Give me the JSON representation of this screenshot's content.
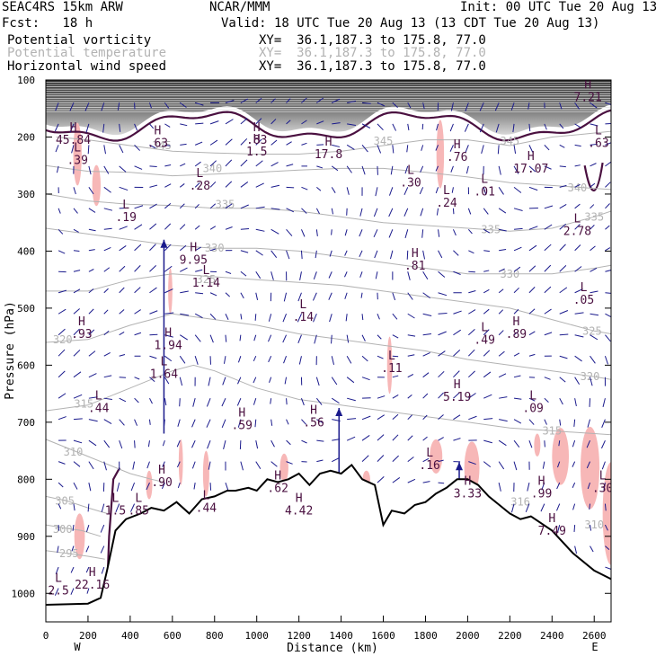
{
  "header": {
    "model": "SEAC4RS 15km ARW",
    "center": "NCAR/MMM",
    "init": "Init: 00 UTC Tue 20 Aug 13",
    "fcst_label": "Fcst:",
    "fcst_value": "18 h",
    "valid": "Valid: 18 UTC Tue 20 Aug 13 (13 CDT Tue 20 Aug 13)",
    "fields": [
      {
        "name": "Potential vorticity",
        "xy": "XY=  36.1,187.3 to 175.8, 77.0"
      },
      {
        "name": "Potential temperature",
        "xy": "XY=  36.1,187.3 to 175.8, 77.0"
      },
      {
        "name": "Horizontal wind speed",
        "xy": "XY=  36.1,187.3 to 175.8, 77.0"
      }
    ]
  },
  "colors": {
    "pv_contour": "#4a1040",
    "theta_contour": "#b3b3b3",
    "wind_text": "#1a1a8c",
    "pv_fill": "#f7b7b7",
    "terrain": "#000000"
  },
  "chart_data": {
    "type": "heatmap",
    "xlabel": "Distance (km)",
    "ylabel": "Pressure (hPa)",
    "xlim": [
      0,
      2680
    ],
    "ylim": [
      1050,
      100
    ],
    "x_ticks": [
      "0",
      "200",
      "400",
      "600",
      "800",
      "1000",
      "1200",
      "1400",
      "1600",
      "1800",
      "2000",
      "2200",
      "2400",
      "2600"
    ],
    "y_ticks": [
      "100",
      "200",
      "300",
      "400",
      "500",
      "600",
      "700",
      "800",
      "900",
      "1000"
    ],
    "end_labels": {
      "left": "W",
      "right": "E"
    },
    "terrain": [
      [
        0,
        1020
      ],
      [
        200,
        1018
      ],
      [
        260,
        1008
      ],
      [
        290,
        960
      ],
      [
        330,
        890
      ],
      [
        380,
        870
      ],
      [
        450,
        860
      ],
      [
        500,
        850
      ],
      [
        560,
        855
      ],
      [
        620,
        840
      ],
      [
        680,
        860
      ],
      [
        740,
        835
      ],
      [
        800,
        830
      ],
      [
        860,
        820
      ],
      [
        900,
        820
      ],
      [
        960,
        815
      ],
      [
        1000,
        820
      ],
      [
        1050,
        800
      ],
      [
        1100,
        805
      ],
      [
        1150,
        800
      ],
      [
        1200,
        790
      ],
      [
        1250,
        810
      ],
      [
        1300,
        790
      ],
      [
        1350,
        785
      ],
      [
        1400,
        790
      ],
      [
        1450,
        775
      ],
      [
        1500,
        800
      ],
      [
        1560,
        810
      ],
      [
        1600,
        880
      ],
      [
        1640,
        855
      ],
      [
        1700,
        860
      ],
      [
        1750,
        845
      ],
      [
        1800,
        840
      ],
      [
        1850,
        825
      ],
      [
        1900,
        815
      ],
      [
        1950,
        800
      ],
      [
        2000,
        800
      ],
      [
        2050,
        810
      ],
      [
        2100,
        830
      ],
      [
        2150,
        845
      ],
      [
        2200,
        860
      ],
      [
        2250,
        870
      ],
      [
        2300,
        865
      ],
      [
        2400,
        890
      ],
      [
        2500,
        930
      ],
      [
        2600,
        960
      ],
      [
        2680,
        975
      ]
    ],
    "theta_contours": [
      {
        "label": "345",
        "points": [
          [
            50,
            200
          ],
          [
            200,
            205
          ],
          [
            400,
            215
          ],
          [
            600,
            225
          ],
          [
            800,
            228
          ],
          [
            1000,
            230
          ],
          [
            1200,
            230
          ],
          [
            1400,
            225
          ],
          [
            1600,
            215
          ],
          [
            1800,
            205
          ],
          [
            2000,
            205
          ],
          [
            2200,
            215
          ],
          [
            2400,
            200
          ],
          [
            2550,
            195
          ],
          [
            2680,
            190
          ]
        ],
        "labels": [
          [
            550,
            215
          ],
          [
            1600,
            207
          ],
          [
            2200,
            207
          ]
        ]
      },
      {
        "label": "340",
        "points": [
          [
            0,
            250
          ],
          [
            200,
            260
          ],
          [
            400,
            262
          ],
          [
            600,
            268
          ],
          [
            800,
            265
          ],
          [
            1000,
            262
          ],
          [
            1200,
            258
          ],
          [
            1400,
            255
          ],
          [
            1600,
            255
          ],
          [
            1800,
            262
          ],
          [
            2000,
            270
          ],
          [
            2200,
            280
          ],
          [
            2400,
            285
          ],
          [
            2600,
            290
          ],
          [
            2680,
            292
          ]
        ],
        "labels": [
          [
            790,
            255
          ],
          [
            2520,
            289
          ]
        ]
      },
      {
        "label": "335",
        "points": [
          [
            0,
            300
          ],
          [
            200,
            312
          ],
          [
            400,
            318
          ],
          [
            600,
            320
          ],
          [
            800,
            325
          ],
          [
            1000,
            325
          ],
          [
            1200,
            330
          ],
          [
            1400,
            340
          ],
          [
            1600,
            350
          ],
          [
            1800,
            355
          ],
          [
            2000,
            360
          ],
          [
            2200,
            365
          ],
          [
            2400,
            360
          ],
          [
            2600,
            340
          ],
          [
            2680,
            330
          ]
        ],
        "labels": [
          [
            850,
            318
          ],
          [
            2110,
            362
          ],
          [
            2600,
            340
          ]
        ]
      },
      {
        "label": "330",
        "points": [
          [
            0,
            360
          ],
          [
            200,
            370
          ],
          [
            400,
            380
          ],
          [
            600,
            390
          ],
          [
            800,
            395
          ],
          [
            1000,
            395
          ],
          [
            1200,
            400
          ],
          [
            1400,
            410
          ],
          [
            1600,
            420
          ],
          [
            1800,
            430
          ],
          [
            2000,
            440
          ],
          [
            2200,
            440
          ],
          [
            2400,
            440
          ],
          [
            2600,
            430
          ],
          [
            2680,
            425
          ]
        ],
        "labels": [
          [
            800,
            395
          ],
          [
            2200,
            440
          ]
        ]
      },
      {
        "label": "325",
        "points": [
          [
            0,
            470
          ],
          [
            200,
            470
          ],
          [
            400,
            450
          ],
          [
            600,
            440
          ],
          [
            800,
            445
          ],
          [
            1000,
            450
          ],
          [
            1200,
            455
          ],
          [
            1400,
            460
          ],
          [
            1600,
            470
          ],
          [
            1800,
            480
          ],
          [
            2000,
            490
          ],
          [
            2200,
            500
          ],
          [
            2400,
            520
          ],
          [
            2600,
            540
          ],
          [
            2680,
            545
          ]
        ],
        "labels": [
          [
            760,
            450
          ],
          [
            2590,
            540
          ]
        ]
      },
      {
        "label": "320",
        "points": [
          [
            0,
            560
          ],
          [
            200,
            555
          ],
          [
            400,
            530
          ],
          [
            500,
            520
          ],
          [
            600,
            510
          ],
          [
            800,
            520
          ],
          [
            1000,
            530
          ],
          [
            1200,
            545
          ],
          [
            1400,
            555
          ],
          [
            1600,
            565
          ],
          [
            1800,
            575
          ],
          [
            2000,
            590
          ],
          [
            2200,
            600
          ],
          [
            2400,
            610
          ],
          [
            2600,
            620
          ],
          [
            2680,
            625
          ]
        ],
        "labels": [
          [
            80,
            555
          ],
          [
            2580,
            620
          ]
        ]
      },
      {
        "label": "315",
        "points": [
          [
            0,
            680
          ],
          [
            200,
            670
          ],
          [
            400,
            640
          ],
          [
            600,
            610
          ],
          [
            700,
            600
          ],
          [
            800,
            610
          ],
          [
            1000,
            640
          ],
          [
            1200,
            660
          ],
          [
            1400,
            670
          ],
          [
            1600,
            680
          ],
          [
            1800,
            690
          ],
          [
            2000,
            700
          ],
          [
            2200,
            710
          ],
          [
            2400,
            715
          ],
          [
            2600,
            720
          ],
          [
            2680,
            722
          ]
        ],
        "labels": [
          [
            180,
            668
          ],
          [
            2400,
            715
          ]
        ]
      },
      {
        "label": "310",
        "points": [
          [
            0,
            730
          ],
          [
            100,
            745
          ],
          [
            200,
            760
          ],
          [
            300,
            775
          ],
          [
            400,
            790
          ],
          [
            500,
            800
          ],
          [
            560,
            805
          ]
        ],
        "labels": [
          [
            130,
            752
          ]
        ]
      },
      {
        "label": "305",
        "points": [
          [
            0,
            830
          ],
          [
            100,
            838
          ],
          [
            200,
            850
          ],
          [
            290,
            860
          ]
        ],
        "labels": [
          [
            90,
            838
          ]
        ]
      },
      {
        "label": "300",
        "points": [
          [
            0,
            880
          ],
          [
            80,
            885
          ],
          [
            170,
            890
          ],
          [
            260,
            900
          ]
        ],
        "labels": [
          [
            80,
            888
          ]
        ]
      },
      {
        "label": "295",
        "points": [
          [
            0,
            925
          ],
          [
            100,
            930
          ],
          [
            200,
            935
          ],
          [
            280,
            940
          ]
        ],
        "labels": [
          [
            110,
            930
          ]
        ]
      }
    ],
    "theta_terrain_labels": [
      [
        "311.3",
        680,
        870
      ],
      [
        "316.2",
        1950,
        840
      ],
      [
        "316",
        2250,
        840
      ],
      [
        "310",
        2600,
        880
      ]
    ],
    "pv_labels": [
      [
        "H",
        "45.84",
        130,
        190
      ],
      [
        "L",
        ".39",
        150,
        225
      ],
      [
        "H",
        ".63",
        530,
        195
      ],
      [
        "L",
        ".28",
        730,
        270
      ],
      [
        "L",
        ".19",
        380,
        325
      ],
      [
        "H",
        "9.95",
        700,
        400
      ],
      [
        "L",
        "1.14",
        760,
        440
      ],
      [
        "H",
        ".93",
        170,
        530
      ],
      [
        "H",
        "1.94",
        580,
        550
      ],
      [
        "L",
        "1.64",
        560,
        600
      ],
      [
        "L",
        ".44",
        250,
        660
      ],
      [
        "H",
        ".59",
        930,
        690
      ],
      [
        "H",
        ".56",
        1270,
        685
      ],
      [
        "H",
        "17.8",
        1340,
        215
      ],
      [
        "H",
        ".83",
        1000,
        190
      ],
      [
        "H",
        "1.5",
        1000,
        210
      ],
      [
        "L",
        ".30",
        1730,
        265
      ],
      [
        "L",
        ".24",
        1900,
        300
      ],
      [
        "L",
        ".01",
        2080,
        280
      ],
      [
        "H",
        "17.07",
        2300,
        240
      ],
      [
        "H",
        "7.21",
        2570,
        115
      ],
      [
        "L",
        ".63",
        2620,
        195
      ],
      [
        "L",
        "2.78",
        2520,
        350
      ],
      [
        "L",
        ".05",
        2550,
        470
      ],
      [
        "L",
        ".14",
        1220,
        500
      ],
      [
        "H",
        ".81",
        1750,
        410
      ],
      [
        "L",
        ".49",
        2080,
        540
      ],
      [
        "H",
        ".89",
        2230,
        530
      ],
      [
        "L",
        ".11",
        1640,
        590
      ],
      [
        "H",
        "5.19",
        1950,
        640
      ],
      [
        "L",
        ".09",
        2310,
        660
      ],
      [
        "L",
        ".16",
        1820,
        760
      ],
      [
        "H",
        ".90",
        550,
        790
      ],
      [
        "L",
        ".44",
        760,
        835
      ],
      [
        "H",
        ".62",
        1100,
        800
      ],
      [
        "H",
        "4.42",
        1200,
        840
      ],
      [
        "H",
        "3.33",
        2000,
        810
      ],
      [
        "H",
        ".99",
        2350,
        810
      ],
      [
        "L",
        ".30",
        2640,
        800
      ],
      [
        "H",
        "7.49",
        2400,
        875
      ],
      [
        "L",
        ".85",
        440,
        840
      ],
      [
        "H",
        "22.16",
        220,
        970
      ],
      [
        "L",
        "1.5",
        330,
        840
      ],
      [
        "L",
        "2.5",
        60,
        980
      ],
      [
        "H",
        ".76",
        1950,
        220
      ]
    ],
    "strong_wind_arrows": [
      [
        560,
        720,
        560,
        380
      ],
      [
        1390,
        810,
        1390,
        675
      ],
      [
        1960,
        860,
        1960,
        770
      ]
    ]
  }
}
